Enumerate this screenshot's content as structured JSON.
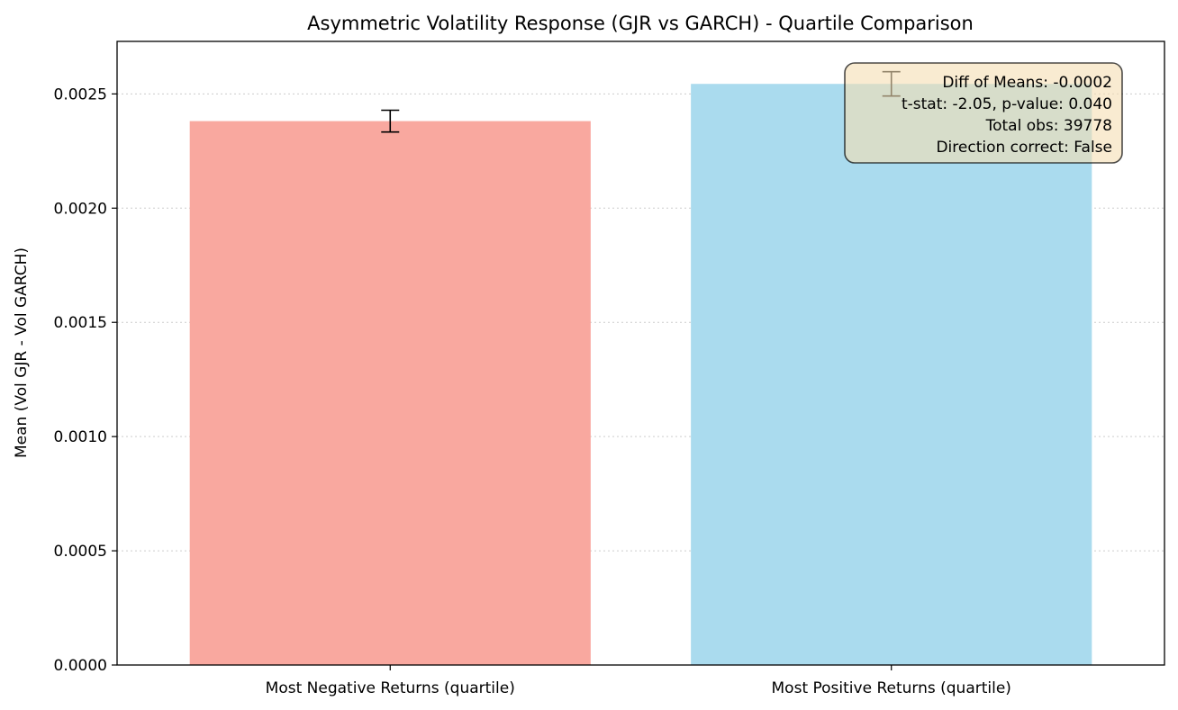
{
  "chart_data": {
    "type": "bar",
    "title": "Asymmetric Volatility Response (GJR vs GARCH) - Quartile Comparison",
    "xlabel": "",
    "ylabel": "Mean (Vol GJR - Vol GARCH)",
    "categories": [
      "Most Negative Returns (quartile)",
      "Most Positive Returns (quartile)"
    ],
    "values": [
      0.002381,
      0.002544
    ],
    "error": [
      4.76e-05,
      5.32e-05
    ],
    "colors": [
      "#f9a89f",
      "#aadbee"
    ],
    "ylim": [
      0,
      0.00273
    ],
    "yticks": [
      0,
      0.0005,
      0.001,
      0.0015,
      0.002,
      0.0025
    ],
    "ytick_labels": [
      "0.0000",
      "0.0005",
      "0.0010",
      "0.0015",
      "0.0020",
      "0.0025"
    ],
    "grid": "y-dotted",
    "annotation": {
      "lines": [
        "Diff of Means: -0.0002",
        "t-stat: -2.05, p-value: 0.040",
        "Total obs: 39778",
        "Direction correct: False"
      ],
      "placement": "top-right",
      "background": "#f5deb3"
    }
  }
}
